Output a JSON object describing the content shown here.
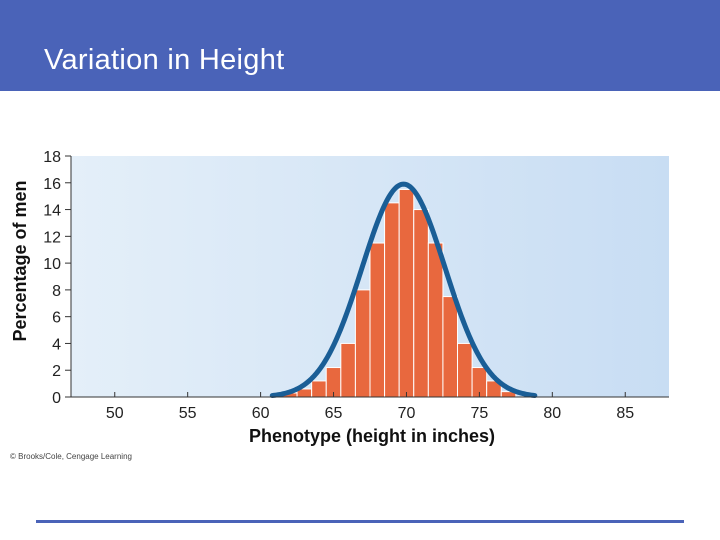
{
  "slide": {
    "title": "Variation in Height",
    "credit": "© Brooks/Cole, Cengage Learning"
  },
  "colors": {
    "header": "#4a63b8",
    "bars": "#e8683e",
    "curve": "#1a5e96",
    "plot_bg_left": "#e4eff9",
    "plot_bg_right": "#c8ddf3"
  },
  "chart_data": {
    "type": "bar",
    "title": "",
    "xlabel": "Phenotype (height in inches)",
    "ylabel": "Percentage of men",
    "xlim": [
      47,
      88
    ],
    "ylim": [
      0,
      18
    ],
    "xticks": [
      50,
      55,
      60,
      65,
      70,
      75,
      80,
      85
    ],
    "yticks": [
      0,
      2,
      4,
      6,
      8,
      10,
      12,
      14,
      16,
      18
    ],
    "grid": false,
    "bars": [
      {
        "x": 62,
        "value": 0.3
      },
      {
        "x": 63,
        "value": 0.6
      },
      {
        "x": 64,
        "value": 1.2
      },
      {
        "x": 65,
        "value": 2.2
      },
      {
        "x": 66,
        "value": 4.0
      },
      {
        "x": 67,
        "value": 8.0
      },
      {
        "x": 68,
        "value": 11.5
      },
      {
        "x": 69,
        "value": 14.5
      },
      {
        "x": 70,
        "value": 15.5
      },
      {
        "x": 71,
        "value": 14.0
      },
      {
        "x": 72,
        "value": 11.5
      },
      {
        "x": 73,
        "value": 7.5
      },
      {
        "x": 74,
        "value": 4.0
      },
      {
        "x": 75,
        "value": 2.2
      },
      {
        "x": 76,
        "value": 1.2
      },
      {
        "x": 77,
        "value": 0.4
      }
    ],
    "curve": {
      "type": "normal",
      "mean": 69.8,
      "sd": 2.85,
      "peak": 15.9,
      "from": 60.8,
      "to": 78.8
    }
  }
}
